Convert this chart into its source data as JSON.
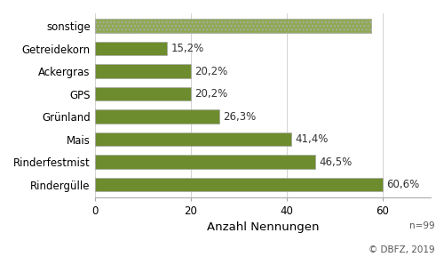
{
  "categories": [
    "Rindergülle",
    "Rinderfestmist",
    "Mais",
    "Grünland",
    "GPS",
    "Ackergras",
    "Getreidekorn",
    "sonstige"
  ],
  "values": [
    60.0,
    46.0,
    41.0,
    26.0,
    20.0,
    20.0,
    15.05,
    57.6
  ],
  "labels": [
    "60,6%",
    "46,5%",
    "41,4%",
    "26,3%",
    "20,2%",
    "20,2%",
    "15,2%",
    ""
  ],
  "bar_color_solid": "#6d8c2e",
  "bar_color_sonstige": "#8faa52",
  "xlabel": "Anzahl Nennungen",
  "footnote1": "n=99",
  "footnote2": "© DBFZ, 2019",
  "xlim": [
    0,
    70
  ],
  "xticks": [
    0,
    20,
    40,
    60
  ],
  "label_fontsize": 8.5,
  "tick_fontsize": 8.5,
  "xlabel_fontsize": 9.5,
  "bar_height": 0.62
}
